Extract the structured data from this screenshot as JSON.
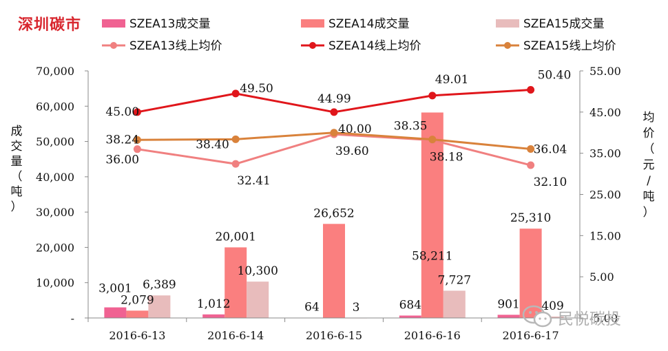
{
  "brand": "深圳碳市",
  "watermark": "民悦碳投",
  "chart_data": {
    "type": "bar",
    "categories": [
      "2016-6-13",
      "2016-6-14",
      "2016-6-15",
      "2016-6-16",
      "2016-6-17"
    ],
    "bar_series": [
      {
        "name": "SZEA13成交量",
        "color": "#f06292",
        "values": [
          3001,
          1012,
          64,
          684,
          901
        ]
      },
      {
        "name": "SZEA14成交量",
        "color": "#fa7f7f",
        "values": [
          2079,
          20001,
          26652,
          58211,
          25310
        ]
      },
      {
        "name": "SZEA15成交量",
        "color": "#e8bcbc",
        "values": [
          6389,
          10300,
          3,
          7727,
          409
        ]
      }
    ],
    "line_series": [
      {
        "name": "SZEA13线上均价",
        "color": "#f08080",
        "values": [
          36.0,
          32.41,
          39.6,
          38.18,
          32.1
        ]
      },
      {
        "name": "SZEA14线上均价",
        "color": "#e0161b",
        "values": [
          45.0,
          49.5,
          44.99,
          49.01,
          50.4
        ]
      },
      {
        "name": "SZEA15线上均价",
        "color": "#d9823b",
        "values": [
          38.24,
          38.4,
          40.0,
          38.35,
          36.04
        ]
      }
    ],
    "bar_labels": [
      [
        "3,001",
        "1,012",
        "64",
        "684",
        "901"
      ],
      [
        "2,079",
        "20,001",
        "26,652",
        "58,211",
        "25,310"
      ],
      [
        "6,389",
        "10,300",
        "3",
        "7,727",
        "409"
      ]
    ],
    "line_labels": [
      [
        "36.00",
        "32.41",
        "39.60",
        "38.18",
        "32.10"
      ],
      [
        "45.00",
        "49.50",
        "44.99",
        "49.01",
        "50.40"
      ],
      [
        "38.24",
        "38.40",
        "40.00",
        "38.35",
        "36.04"
      ]
    ],
    "left_axis": {
      "label": "成交量（吨）",
      "ylim": [
        0,
        70000
      ],
      "ticks": [
        0,
        10000,
        20000,
        30000,
        40000,
        50000,
        60000,
        70000
      ],
      "tick_labels": [
        "-",
        "10,000",
        "20,000",
        "30,000",
        "40,000",
        "50,000",
        "60,000",
        "70,000"
      ]
    },
    "right_axis": {
      "label": "均价（元/吨）",
      "ylim": [
        -5,
        55
      ],
      "ticks": [
        -5,
        5,
        15,
        25,
        35,
        45,
        55
      ],
      "tick_labels": [
        "-5.00",
        "5.00",
        "15.00",
        "25.00",
        "35.00",
        "45.00",
        "55.00"
      ]
    },
    "legend_position": "top",
    "grid": false
  }
}
